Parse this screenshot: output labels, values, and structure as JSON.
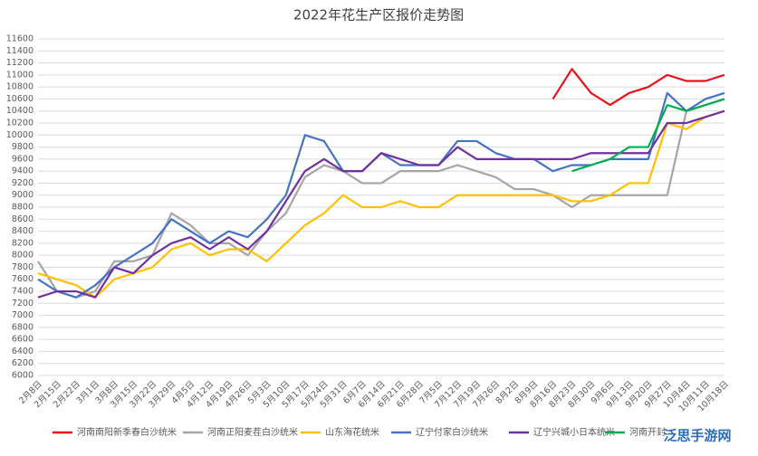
{
  "chart_data": {
    "type": "line",
    "title": "2022年花生产区报价走势图",
    "categories": [
      "2月8日",
      "2月15日",
      "2月22日",
      "3月1日",
      "3月8日",
      "3月15日",
      "3月22日",
      "3月29日",
      "4月5日",
      "4月12日",
      "4月19日",
      "4月26日",
      "5月3日",
      "5月10日",
      "5月17日",
      "5月24日",
      "5月31日",
      "6月7日",
      "6月14日",
      "6月21日",
      "6月28日",
      "7月5日",
      "7月12日",
      "7月19日",
      "7月26日",
      "8月2日",
      "8月9日",
      "8月16日",
      "8月23日",
      "8月30日",
      "9月6日",
      "9月13日",
      "9月20日",
      "9月27日",
      "10月4日",
      "10月11日",
      "10月18日"
    ],
    "series": [
      {
        "name": "河南南阳新季春白沙统米",
        "color": "#e8111b",
        "values": [
          null,
          null,
          null,
          null,
          null,
          null,
          null,
          null,
          null,
          null,
          null,
          null,
          null,
          null,
          null,
          null,
          null,
          null,
          null,
          null,
          null,
          null,
          null,
          null,
          null,
          null,
          null,
          10600,
          11100,
          10700,
          10500,
          10700,
          10800,
          11000,
          10900,
          10900,
          11000
        ]
      },
      {
        "name": "河南正阳麦茬白沙统米",
        "color": "#a5a5a5",
        "values": [
          7900,
          7400,
          7300,
          7400,
          7900,
          7900,
          8000,
          8700,
          8500,
          8200,
          8200,
          8000,
          8400,
          8700,
          9300,
          9500,
          9400,
          9200,
          9200,
          9400,
          9400,
          9400,
          9500,
          9400,
          9300,
          9100,
          9100,
          9000,
          8800,
          9000,
          9000,
          9000,
          9000,
          9000,
          10400,
          10500,
          10600
        ]
      },
      {
        "name": "山东海花统米",
        "color": "#ffc000",
        "values": [
          7700,
          7600,
          7500,
          7300,
          7600,
          7700,
          7800,
          8100,
          8200,
          8000,
          8100,
          8100,
          7900,
          8200,
          8500,
          8700,
          9000,
          8800,
          8800,
          8900,
          8800,
          8800,
          9000,
          9000,
          9000,
          9000,
          9000,
          9000,
          8900,
          8900,
          9000,
          9200,
          9200,
          10200,
          10100,
          10300,
          10400
        ]
      },
      {
        "name": "辽宁付家白沙统米",
        "color": "#4472c4",
        "values": [
          7600,
          7400,
          7300,
          7500,
          7800,
          8000,
          8200,
          8600,
          8400,
          8200,
          8400,
          8300,
          8600,
          9000,
          10000,
          9900,
          9400,
          9400,
          9700,
          9500,
          9500,
          9500,
          9900,
          9900,
          9700,
          9600,
          9600,
          9400,
          9500,
          9500,
          9600,
          9600,
          9600,
          10700,
          10400,
          10600,
          10700
        ]
      },
      {
        "name": "辽宁兴城小日本统米",
        "color": "#7030a0",
        "values": [
          7300,
          7400,
          7400,
          7300,
          7800,
          7700,
          8000,
          8200,
          8300,
          8100,
          8300,
          8100,
          8400,
          8900,
          9400,
          9600,
          9400,
          9400,
          9700,
          9600,
          9500,
          9500,
          9800,
          9600,
          9600,
          9600,
          9600,
          9600,
          9600,
          9700,
          9700,
          9700,
          9700,
          10200,
          10200,
          10300,
          10400
        ]
      },
      {
        "name": "河南开封",
        "color": "#00b050",
        "values": [
          null,
          null,
          null,
          null,
          null,
          null,
          null,
          null,
          null,
          null,
          null,
          null,
          null,
          null,
          null,
          null,
          null,
          null,
          null,
          null,
          null,
          null,
          null,
          null,
          null,
          null,
          null,
          null,
          9400,
          9500,
          9600,
          9800,
          9800,
          10500,
          10400,
          10500,
          10600
        ]
      }
    ],
    "ylim": [
      6000,
      11600
    ],
    "yticks": [
      6000,
      6200,
      6400,
      6600,
      6800,
      7000,
      7200,
      7400,
      7600,
      7800,
      8000,
      8200,
      8400,
      8600,
      8800,
      9000,
      9200,
      9400,
      9600,
      9800,
      10000,
      10200,
      10400,
      10600,
      10800,
      11000,
      11200,
      11400,
      11600
    ],
    "grid": true,
    "watermark": "泛思手游网"
  }
}
